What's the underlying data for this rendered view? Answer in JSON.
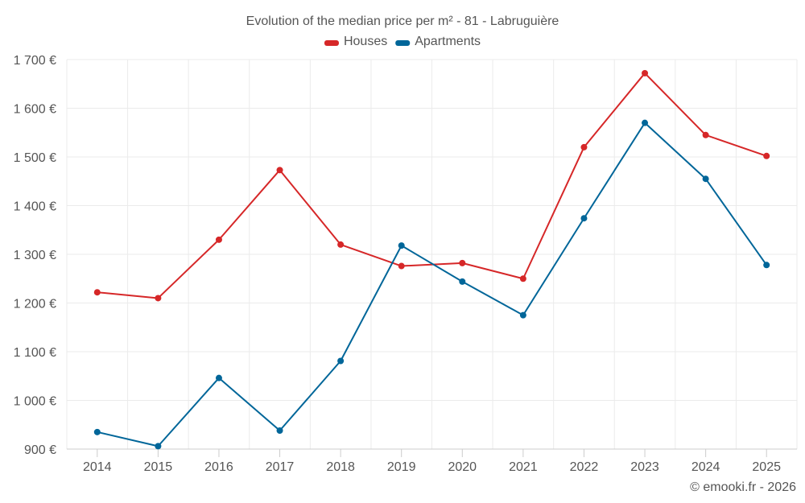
{
  "chart_data": {
    "type": "line",
    "title": "Evolution of the median price per m² - 81 - Labruguière",
    "categories": [
      "2014",
      "2015",
      "2016",
      "2017",
      "2018",
      "2019",
      "2020",
      "2021",
      "2022",
      "2023",
      "2024",
      "2025"
    ],
    "series": [
      {
        "name": "Houses",
        "color": "#d62728",
        "values": [
          1222,
          1210,
          1330,
          1473,
          1320,
          1276,
          1282,
          1250,
          1520,
          1672,
          1545,
          1502
        ]
      },
      {
        "name": "Apartments",
        "color": "#006699",
        "values": [
          935,
          906,
          1046,
          938,
          1081,
          1318,
          1244,
          1175,
          1374,
          1570,
          1455,
          1278
        ]
      }
    ],
    "ylim": [
      900,
      1700
    ],
    "yticks": [
      900,
      1000,
      1100,
      1200,
      1300,
      1400,
      1500,
      1600,
      1700
    ],
    "ytick_labels": [
      "900 €",
      "1 000 €",
      "1 100 €",
      "1 200 €",
      "1 300 €",
      "1 400 €",
      "1 500 €",
      "1 600 €",
      "1 700 €"
    ],
    "xlabel": "",
    "ylabel": "",
    "grid": true,
    "legend_position": "top-center"
  },
  "credit": "© emooki.fr - 2026"
}
